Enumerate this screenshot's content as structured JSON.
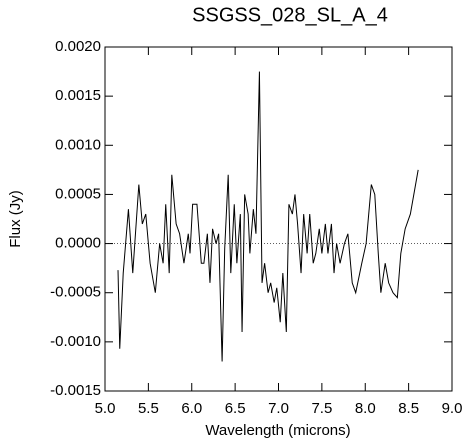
{
  "chart_data": {
    "type": "line",
    "title": "SSGSS_028_SL_A_4",
    "x_label": "Wavelength (microns)",
    "y_label": "Flux (Jy)",
    "xlim": [
      5.0,
      9.0
    ],
    "xticks": [
      {
        "value": 5.0,
        "label": "5.0"
      },
      {
        "value": 5.5,
        "label": "5.5"
      },
      {
        "value": 6.0,
        "label": "6.0"
      },
      {
        "value": 6.5,
        "label": "6.5"
      },
      {
        "value": 7.0,
        "label": "7.0"
      },
      {
        "value": 7.5,
        "label": "7.5"
      },
      {
        "value": 8.0,
        "label": "8.0"
      },
      {
        "value": 8.5,
        "label": "8.5"
      },
      {
        "value": 9.0,
        "label": "9.0"
      }
    ],
    "ylim": [
      -0.0015,
      0.002
    ],
    "yticks": [
      {
        "value": -0.0015,
        "label": "-0.0015"
      },
      {
        "value": -0.001,
        "label": "-0.0010"
      },
      {
        "value": -0.0005,
        "label": "-0.0005"
      },
      {
        "value": 0,
        "label": "0.0000"
      },
      {
        "value": 0.0005,
        "label": "0.0005"
      },
      {
        "value": 0.001,
        "label": "0.0010"
      },
      {
        "value": 0.0015,
        "label": "0.0015"
      },
      {
        "value": 0.002,
        "label": "0.0020"
      }
    ],
    "zero_line": true,
    "series": [
      {
        "color": "#000000",
        "x": [
          5.15,
          5.17,
          5.21,
          5.27,
          5.32,
          5.39,
          5.43,
          5.47,
          5.52,
          5.58,
          5.63,
          5.67,
          5.7,
          5.74,
          5.77,
          5.82,
          5.86,
          5.91,
          5.96,
          5.98,
          6.01,
          6.06,
          6.11,
          6.14,
          6.18,
          6.21,
          6.24,
          6.28,
          6.31,
          6.35,
          6.38,
          6.42,
          6.45,
          6.49,
          6.52,
          6.56,
          6.58,
          6.61,
          6.65,
          6.67,
          6.71,
          6.74,
          6.78,
          6.81,
          6.84,
          6.88,
          6.91,
          6.95,
          6.98,
          7.02,
          7.05,
          7.09,
          7.12,
          7.16,
          7.19,
          7.22,
          7.26,
          7.29,
          7.33,
          7.36,
          7.4,
          7.43,
          7.47,
          7.5,
          7.54,
          7.57,
          7.61,
          7.64,
          7.67,
          7.71,
          7.76,
          7.8,
          7.85,
          7.89,
          7.96,
          8.01,
          8.07,
          8.11,
          8.15,
          8.18,
          8.23,
          8.27,
          8.32,
          8.37,
          8.41,
          8.46,
          8.52,
          8.61
        ],
        "values": [
          -0.00027,
          -0.00107,
          -0.0003,
          0.00035,
          -0.0003,
          0.0006,
          0.0002,
          0.0003,
          -0.0002,
          -0.0005,
          0.0,
          -0.0002,
          0.0004,
          -0.0003,
          0.0007,
          0.0002,
          0.0001,
          -0.0002,
          0.0001,
          -0.0001,
          0.0004,
          0.0004,
          -0.0002,
          -0.0002,
          0.0001,
          -0.0004,
          0.00015,
          0.0,
          0.0001,
          -0.0012,
          -5e-05,
          0.0007,
          -0.0003,
          0.0004,
          -0.0002,
          0.0003,
          -0.0009,
          0.0005,
          0.0003,
          -0.0001,
          0.00035,
          0.0001,
          0.00175,
          -0.0004,
          -0.0002,
          -0.0005,
          -0.0004,
          -0.0006,
          -0.00045,
          -0.0008,
          -0.0003,
          -0.0009,
          0.0004,
          0.0003,
          0.0005,
          0.0002,
          -0.0003,
          0.0003,
          -0.0001,
          0.0003,
          -0.0002,
          -0.0001,
          0.00015,
          -0.0001,
          0.0002,
          -0.0001,
          0.0002,
          -0.0003,
          0.0,
          -0.0002,
          0.0,
          0.0001,
          -0.0004,
          -0.0005,
          -0.0002,
          0.0,
          0.0006,
          0.0005,
          -0.0001,
          -0.0005,
          -0.0002,
          -0.0004,
          -0.0005,
          -0.00055,
          -0.0001,
          0.00015,
          0.0003,
          0.00075
        ]
      }
    ]
  }
}
